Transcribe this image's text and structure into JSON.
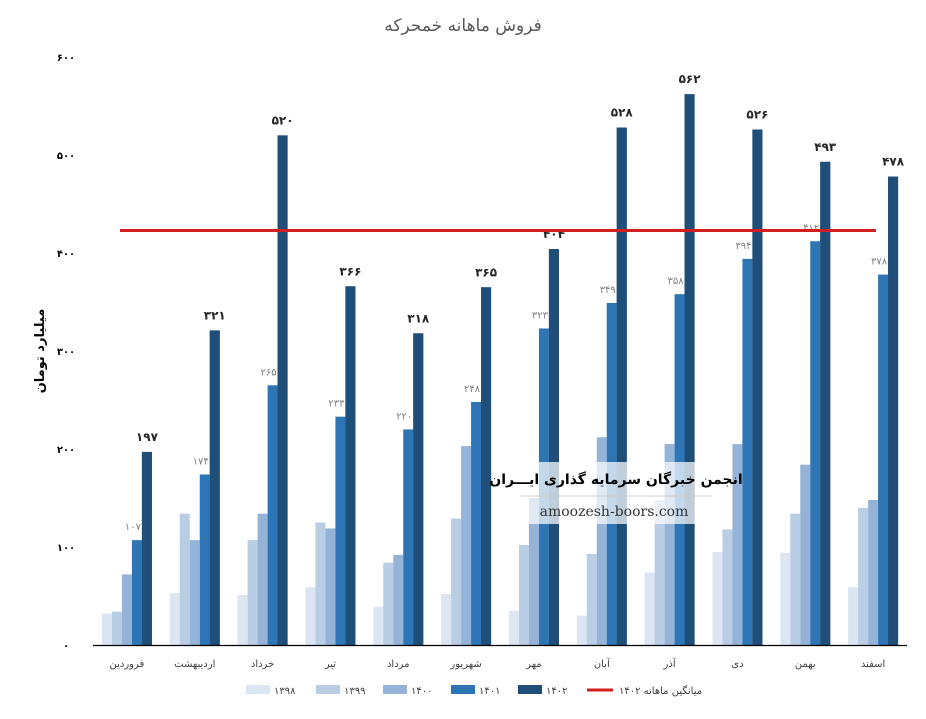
{
  "chart_data": {
    "type": "bar",
    "title": "فروش ماهانه خمحرکه",
    "ylabel": "میلیارد تومان",
    "xlabel": "",
    "ylim": [
      0,
      600
    ],
    "yticks": [
      0,
      100,
      200,
      300,
      400,
      500,
      600
    ],
    "ytick_labels": [
      "۰",
      "۱۰۰",
      "۲۰۰",
      "۳۰۰",
      "۴۰۰",
      "۵۰۰",
      "۶۰۰"
    ],
    "categories": [
      "فروردین",
      "اردیبهشت",
      "خرداد",
      "تیر",
      "مرداد",
      "شهریور",
      "مهر",
      "آبان",
      "آذر",
      "دی",
      "بهمن",
      "اسفند"
    ],
    "series": [
      {
        "name": "۱۳۹۸",
        "color": "#dce6f2",
        "values": [
          32,
          53,
          51,
          59,
          39,
          52,
          35,
          30,
          74,
          95,
          94,
          59
        ]
      },
      {
        "name": "۱۳۹۹",
        "color": "#b9cde5",
        "values": [
          34,
          134,
          107,
          125,
          84,
          129,
          102,
          93,
          148,
          118,
          134,
          140
        ]
      },
      {
        "name": "۱۴۰۰",
        "color": "#95b3d7",
        "values": [
          72,
          107,
          134,
          119,
          92,
          203,
          150,
          212,
          205,
          205,
          184,
          148
        ]
      },
      {
        "name": "۱۴۰۱",
        "color": "#2e75b6",
        "values": [
          107,
          174,
          265,
          233,
          220,
          248,
          323,
          349,
          358,
          394,
          412,
          378
        ]
      },
      {
        "name": "۱۴۰۲",
        "color": "#1f4e79",
        "values": [
          197,
          321,
          520,
          366,
          318,
          365,
          404,
          528,
          562,
          526,
          493,
          478
        ]
      }
    ],
    "data_labels_1402": [
      "۱۹۷",
      "۳۲۱",
      "۵۲۰",
      "۳۶۶",
      "۳۱۸",
      "۳۶۵",
      "۴۰۴",
      "۵۲۸",
      "۵۶۲",
      "۵۲۶",
      "۴۹۳",
      "۴۷۸"
    ],
    "data_labels_1401": [
      "۱۰۷",
      "۱۷۴",
      "۲۶۵",
      "۲۳۳",
      "۲۲۰",
      "۲۴۸",
      "۳۲۳",
      "۳۴۹",
      "۳۵۸",
      "۳۹۴",
      "۴۱۲",
      "۳۷۸"
    ],
    "average_line": {
      "name": "میانگین ماهانه ۱۴۰۲",
      "value": 423,
      "color": "#d11f1f"
    },
    "legend_position": "bottom",
    "grid": false
  },
  "watermark": {
    "title": "انجمن خبرگان سرمایه گذاری ایـــران",
    "url": "amoozesh-boors.com"
  }
}
